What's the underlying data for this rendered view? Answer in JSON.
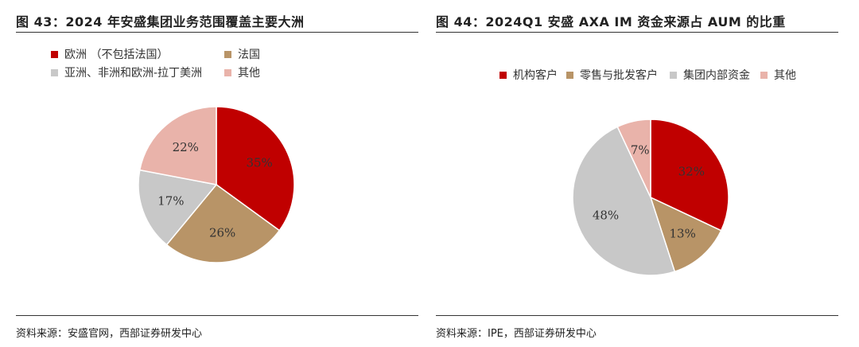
{
  "charts": [
    {
      "figure_title": "图 43：2024 年安盛集团业务范围覆盖主要大洲",
      "source": "资料来源：安盛官网，西部证券研发中心"
    },
    {
      "figure_title": "图 44：2024Q1 安盛 AXA IM 资金来源占 AUM 的比重",
      "source": "资料来源：IPE，西部证券研发中心"
    }
  ],
  "chart_data": [
    {
      "type": "pie",
      "title": "图 43：2024 年安盛集团业务范围覆盖主要大洲",
      "series": [
        {
          "name": "欧洲 （不包括法国）",
          "value": 35,
          "label": "35%",
          "color": "#C00000"
        },
        {
          "name": "法国",
          "value": 26,
          "label": "26%",
          "color": "#B89467"
        },
        {
          "name": "亚洲、非洲和欧洲-拉丁美洲",
          "value": 17,
          "label": "17%",
          "color": "#C8C8C8"
        },
        {
          "name": "其他",
          "value": 22,
          "label": "22%",
          "color": "#E9B3AA"
        }
      ],
      "start": "12 o'clock",
      "direction": "clockwise",
      "legend_position": "top-left"
    },
    {
      "type": "pie",
      "title": "图 44：2024Q1 安盛 AXA IM 资金来源占 AUM 的比重",
      "series": [
        {
          "name": "机构客户",
          "value": 32,
          "label": "32%",
          "color": "#C00000"
        },
        {
          "name": "零售与批发客户",
          "value": 13,
          "label": "13%",
          "color": "#B89467"
        },
        {
          "name": "集团内部资金",
          "value": 48,
          "label": "48%",
          "color": "#C8C8C8"
        },
        {
          "name": "其他",
          "value": 7,
          "label": "7%",
          "color": "#E9B3AA"
        }
      ],
      "start": "12 o'clock",
      "direction": "clockwise",
      "legend_position": "top-center"
    }
  ]
}
